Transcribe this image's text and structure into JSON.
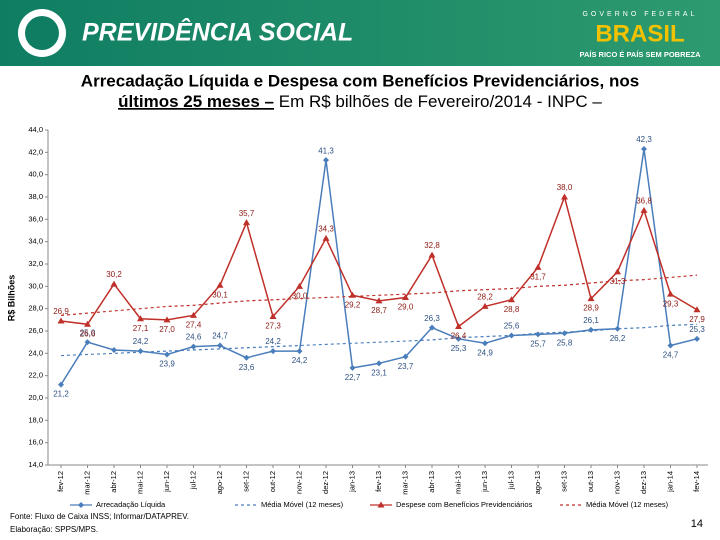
{
  "header": {
    "title": "PREVIDÊNCIA SOCIAL",
    "gov": "GOVERNO FEDERAL",
    "brand": "BRASIL",
    "slogan": "PAÍS RICO É PAÍS SEM POBREZA"
  },
  "chart_data": {
    "type": "line",
    "title": "Arrecadação Líquida e Despesa com Benefícios Previdenciários, nos",
    "title_bold": "últimos 25 meses –",
    "subtitle": " Em R$ bilhões de Fevereiro/2014 - INPC –",
    "y_label": "R$ Bilhões",
    "categories": [
      "fev-12",
      "mar-12",
      "abr-12",
      "mai-12",
      "jun-12",
      "jul-12",
      "ago-12",
      "set-12",
      "out-12",
      "nov-12",
      "dez-12",
      "jan-13",
      "fev-13",
      "mar-13",
      "abr-13",
      "mai-13",
      "jun-13",
      "jul-13",
      "ago-13",
      "set-13",
      "out-13",
      "nov-13",
      "dez-13",
      "jan-14",
      "fev-14"
    ],
    "ylim": [
      14,
      44
    ],
    "yticks": [
      {
        "value": 14,
        "label": "14,0"
      },
      {
        "value": 16,
        "label": "16,0"
      },
      {
        "value": 18,
        "label": "18,0"
      },
      {
        "value": 20,
        "label": "20,0"
      },
      {
        "value": 22,
        "label": "22,0"
      },
      {
        "value": 24,
        "label": "24,0"
      },
      {
        "value": 26,
        "label": "26,0"
      },
      {
        "value": 28,
        "label": "28,0"
      },
      {
        "value": 30,
        "label": "30,0"
      },
      {
        "value": 32,
        "label": "32,0"
      },
      {
        "value": 34,
        "label": "34,0"
      },
      {
        "value": 36,
        "label": "36,0"
      },
      {
        "value": 38,
        "label": "38,0"
      },
      {
        "value": 40,
        "label": "40,0"
      },
      {
        "value": 42,
        "label": "42,0"
      },
      {
        "value": 44,
        "label": "44,0"
      }
    ],
    "series": [
      {
        "name": "Arrecadação Líquida",
        "color": "#4a7ebb",
        "marker": "diamond",
        "dash": false,
        "values": [
          21.2,
          25.0,
          24.3,
          24.2,
          23.9,
          24.6,
          24.7,
          23.6,
          24.2,
          24.2,
          41.3,
          22.7,
          23.1,
          23.7,
          26.3,
          25.3,
          24.9,
          25.6,
          25.7,
          25.8,
          26.1,
          26.2,
          42.3,
          24.7,
          25.3
        ],
        "value_labels": [
          "21,2",
          "25,0",
          null,
          "24,2",
          "23,9",
          "24,6",
          "24,7",
          "23,6",
          "24,2",
          "24,2",
          "41,3",
          "22,7",
          "23,1",
          "23,7",
          "26,3",
          "25,3",
          "24,9",
          "25,6",
          "25,7",
          "25,8",
          "26,1",
          "26,2",
          "42,3",
          "24,7",
          "25,3"
        ]
      },
      {
        "name": "Média Móvel (12 meses)",
        "color": "#4a7ebb",
        "marker": "none",
        "dash": true,
        "values": [
          23.8,
          23.9,
          24.0,
          24.1,
          24.2,
          24.3,
          24.4,
          24.5,
          24.6,
          24.7,
          24.8,
          24.9,
          25.0,
          25.1,
          25.2,
          25.4,
          25.5,
          25.6,
          25.8,
          25.9,
          26.0,
          26.2,
          26.3,
          26.5,
          26.6
        ]
      },
      {
        "name": "Despese com Benefícios Previdenciários",
        "color": "#c0302a",
        "marker": "triangle",
        "dash": false,
        "values": [
          26.9,
          26.6,
          30.2,
          27.1,
          27.0,
          27.4,
          30.1,
          35.7,
          27.3,
          30.0,
          34.3,
          29.2,
          28.7,
          29.0,
          32.8,
          26.4,
          28.2,
          28.8,
          31.7,
          38.0,
          28.9,
          31.3,
          36.8,
          29.3,
          27.9
        ],
        "value_labels": [
          "26,9",
          "26,6",
          "30,2",
          "27,1",
          "27,0",
          "27,4",
          "30,1",
          "35,7",
          "27,3",
          "30,0",
          "34,3",
          "29,2",
          "28,7",
          "29,0",
          "32,8",
          "26,4",
          "28,2",
          "28,8",
          "31,7",
          "38,0",
          "28,9",
          "31,3",
          "36,8",
          "29,3",
          "27,9"
        ]
      },
      {
        "name": "Média Móvel (12 meses)",
        "color": "#c0302a",
        "marker": "none",
        "dash": true,
        "values": [
          27.4,
          27.6,
          27.8,
          28.0,
          28.2,
          28.3,
          28.5,
          28.7,
          28.8,
          28.9,
          29.0,
          29.1,
          29.2,
          29.3,
          29.4,
          29.6,
          29.7,
          29.8,
          30.0,
          30.1,
          30.3,
          30.5,
          30.6,
          30.8,
          31.0
        ]
      }
    ]
  },
  "footer": {
    "source": "Fonte: Fluxo de Caixa INSS; Informar/DATAPREV.",
    "credit": "Elaboração: SPPS/MPS.",
    "page": "14"
  }
}
